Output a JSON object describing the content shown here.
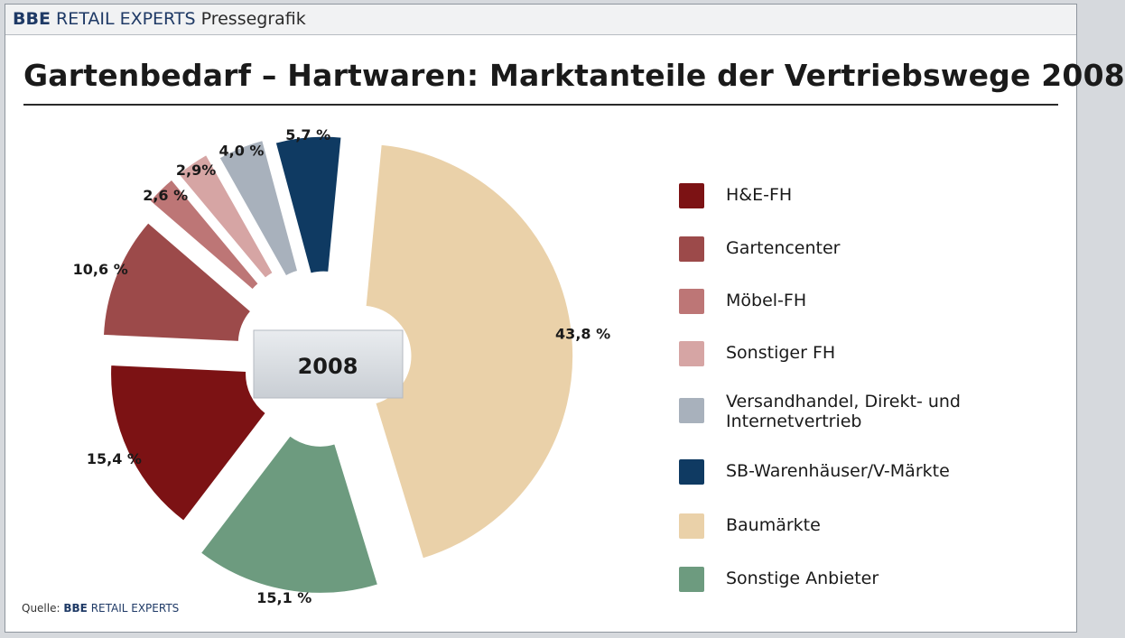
{
  "header": {
    "brand_bold": "BBE",
    "brand_light": "RETAIL EXPERTS",
    "brand_suffix": "Pressegrafik"
  },
  "chart_data": {
    "type": "pie",
    "title": "Gartenbedarf – Hartwaren: Marktanteile der Vertriebswege 2008",
    "center_label": "2008",
    "slices": [
      {
        "label": "H&E-FH",
        "value": 15.4,
        "display": "15,4 %",
        "color": "#7c1214"
      },
      {
        "label": "Gartencenter",
        "value": 10.6,
        "display": "10,6 %",
        "color": "#9c4a4a"
      },
      {
        "label": "Möbel-FH",
        "value": 2.6,
        "display": "2,6 %",
        "color": "#bd7676"
      },
      {
        "label": "Sonstiger FH",
        "value": 2.9,
        "display": "2,9%",
        "color": "#d6a5a4"
      },
      {
        "label": "Versandhandel, Direkt- und Internetvertrieb",
        "value": 4.0,
        "display": "4,0 %",
        "color": "#a8b1bc"
      },
      {
        "label": "SB-Warenhäuser/V-Märkte",
        "value": 5.7,
        "display": "5,7 %",
        "color": "#0f3a62"
      },
      {
        "label": "Baumärkte",
        "value": 43.8,
        "display": "43,8 %",
        "color": "#ead1a9"
      },
      {
        "label": "Sonstige Anbieter",
        "value": 15.1,
        "display": "15,1 %",
        "color": "#6d9b7f"
      }
    ],
    "legend_position": "right"
  },
  "legend": [
    {
      "label": "H&E-FH",
      "color": "#7c1214"
    },
    {
      "label": "Gartencenter",
      "color": "#9c4a4a"
    },
    {
      "label": "Möbel-FH",
      "color": "#bd7676"
    },
    {
      "label": "Sonstiger FH",
      "color": "#d6a5a4"
    },
    {
      "label_line1": "Versandhandel, Direkt- und",
      "label_line2": "Internetvertrieb",
      "color": "#a8b1bc"
    },
    {
      "label": "SB-Warenhäuser/V-Märkte",
      "color": "#0f3a62"
    },
    {
      "label": "Baumärkte",
      "color": "#ead1a9"
    },
    {
      "label": "Sonstige Anbieter",
      "color": "#6d9b7f"
    }
  ],
  "source": {
    "prefix": "Quelle:",
    "brand_bold": "BBE",
    "brand_light": "RETAIL EXPERTS"
  }
}
